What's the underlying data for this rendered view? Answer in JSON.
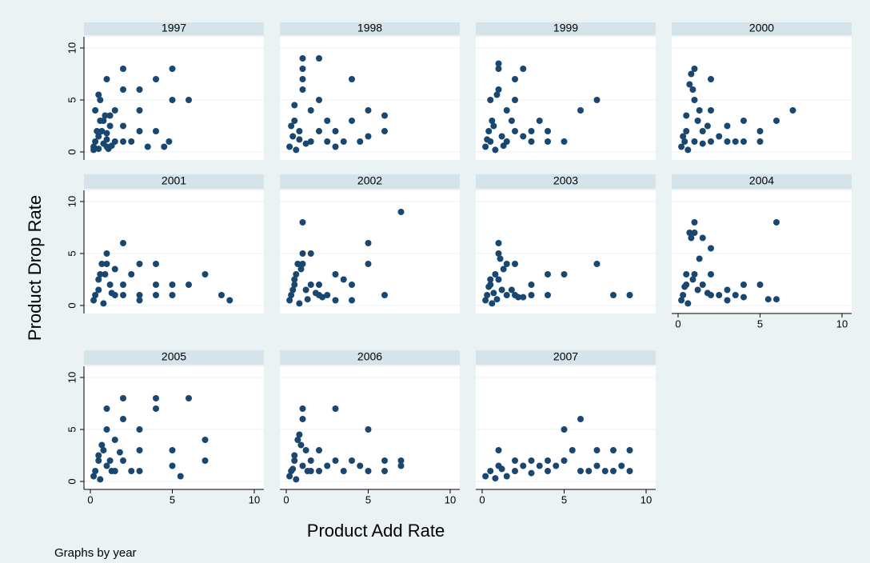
{
  "chart_data": {
    "type": "scatter",
    "y_label": "Product Drop Rate",
    "x_label": "Product Add Rate",
    "note": "Graphs by year",
    "color": "#1a476f",
    "xlim": [
      0,
      10
    ],
    "ylim": [
      0,
      10
    ],
    "xticks": [
      0,
      5,
      10
    ],
    "yticks": [
      0,
      5,
      10
    ],
    "grid": true,
    "panels": [
      {
        "title": "1997",
        "x": [
          0.2,
          0.3,
          0.5,
          0.5,
          0.7,
          0.8,
          1,
          1,
          1.2,
          1.5,
          0.4,
          0.6,
          0.9,
          1.1,
          1.3,
          0.2,
          0.6,
          1,
          1.5,
          2,
          2,
          2,
          2.5,
          3,
          3,
          3,
          3.5,
          4,
          4,
          4.5,
          4.8,
          5,
          5,
          6,
          0.5,
          1,
          1.2,
          2,
          0.8,
          0.3
        ],
        "y": [
          0.5,
          1,
          0.3,
          1.5,
          2,
          0.8,
          0.5,
          1.2,
          2.5,
          1,
          2,
          3,
          3.5,
          0.3,
          0.6,
          0.2,
          5,
          7,
          4,
          8,
          6,
          1,
          1,
          4,
          6,
          2,
          0.5,
          2,
          7,
          0.5,
          1,
          8,
          5,
          5,
          5.5,
          1.8,
          3.5,
          2.5,
          3,
          4
        ]
      },
      {
        "title": "1998",
        "x": [
          0.2,
          0.4,
          0.5,
          0.6,
          0.8,
          1,
          1,
          1,
          1.2,
          1.5,
          1.5,
          2,
          2,
          2,
          2.5,
          2.5,
          3,
          3,
          3.5,
          4,
          4,
          4.5,
          5,
          5,
          6,
          6,
          0.5,
          1,
          0.3,
          0.8
        ],
        "y": [
          0.5,
          1.5,
          3,
          0.2,
          2,
          9,
          6,
          8,
          0.8,
          4,
          1,
          9,
          5,
          2,
          1,
          3,
          2,
          0.5,
          1,
          7,
          3,
          1,
          4,
          1.5,
          3.5,
          2,
          4.5,
          7,
          2.5,
          1.2
        ]
      },
      {
        "title": "1999",
        "x": [
          0.2,
          0.4,
          0.5,
          0.6,
          0.8,
          1,
          1,
          1.2,
          1.5,
          1.5,
          2,
          2,
          2,
          2.5,
          2.5,
          3,
          3,
          3.5,
          4,
          4,
          5,
          6,
          7,
          0.5,
          1,
          0.3,
          1.8,
          0.7,
          1.3,
          0.9
        ],
        "y": [
          0.5,
          2,
          1,
          3,
          0.2,
          8,
          6,
          1.5,
          4,
          1,
          7,
          5,
          2,
          1.5,
          8,
          2,
          1,
          3,
          2,
          1,
          1,
          4,
          5,
          5,
          8.5,
          1.2,
          3,
          2.5,
          0.6,
          5.5
        ]
      },
      {
        "title": "2000",
        "x": [
          0.2,
          0.3,
          0.5,
          0.6,
          0.8,
          1,
          1,
          1,
          1.2,
          1.5,
          1.5,
          2,
          2,
          2,
          2.5,
          3,
          3,
          3.5,
          4,
          4,
          5,
          5,
          6,
          7,
          0.5,
          0.7,
          1.3,
          0.4,
          0.9,
          1.8
        ],
        "y": [
          0.5,
          1.5,
          2,
          0.2,
          7.5,
          8,
          5,
          1,
          3,
          2,
          0.8,
          7,
          1,
          4,
          1.5,
          1,
          2.5,
          1,
          3,
          1,
          2,
          1,
          3,
          4,
          3.5,
          6.5,
          4,
          1,
          6,
          2.5
        ]
      },
      {
        "title": "2001",
        "x": [
          0.2,
          0.3,
          0.5,
          0.6,
          0.8,
          1,
          1,
          1.2,
          1.5,
          1.5,
          2,
          2,
          2,
          2.5,
          3,
          3,
          3,
          4,
          4,
          4,
          5,
          5,
          6,
          7,
          8,
          8.5,
          0.5,
          0.7,
          1.3,
          0.9
        ],
        "y": [
          0.5,
          1,
          1.5,
          3,
          0.2,
          4,
          5,
          2,
          1,
          3.5,
          6,
          2,
          1,
          3,
          4,
          1,
          0.5,
          4,
          2,
          1,
          2,
          1,
          2,
          3,
          1,
          0.5,
          2.5,
          4,
          1.2,
          3
        ]
      },
      {
        "title": "2002",
        "x": [
          0.2,
          0.3,
          0.5,
          0.6,
          0.8,
          1,
          1,
          1,
          1.2,
          1.5,
          1.5,
          2,
          2,
          2.5,
          3,
          3,
          3.5,
          4,
          4,
          5,
          5,
          6,
          7,
          0.5,
          0.7,
          1.3,
          0.9,
          1.8,
          2.2,
          0.4
        ],
        "y": [
          0.5,
          1,
          2,
          3,
          0.2,
          8,
          5,
          4,
          1.5,
          5,
          2,
          2,
          1,
          1,
          3,
          0.5,
          2.5,
          2,
          0.5,
          6,
          4,
          1,
          9,
          2.5,
          4,
          0.6,
          3.5,
          1.2,
          0.8,
          1.5
        ]
      },
      {
        "title": "2003",
        "x": [
          0.2,
          0.3,
          0.5,
          0.6,
          0.8,
          1,
          1,
          1,
          1.2,
          1.5,
          1.5,
          2,
          2,
          2.5,
          3,
          3,
          4,
          4,
          5,
          7,
          8,
          9,
          0.5,
          0.7,
          1.3,
          0.9,
          1.8,
          0.4,
          2.2,
          1.1
        ],
        "y": [
          0.5,
          1,
          2,
          0.2,
          3,
          6,
          5,
          2.5,
          1.5,
          4,
          1,
          4,
          1,
          0.8,
          2,
          1,
          3,
          1,
          3,
          4,
          1,
          1,
          2.5,
          1.2,
          3.5,
          0.6,
          1.5,
          1.8,
          0.8,
          4.5
        ]
      },
      {
        "title": "2004",
        "x": [
          0.2,
          0.3,
          0.5,
          0.6,
          0.8,
          1,
          1,
          1,
          1.2,
          1.5,
          1.5,
          2,
          2,
          2,
          2.5,
          3,
          3,
          3.5,
          4,
          4,
          5,
          5.5,
          6,
          6,
          0.5,
          0.7,
          1.3,
          0.9,
          1.8,
          0.4
        ],
        "y": [
          0.5,
          1,
          2,
          0.2,
          6.5,
          8,
          7,
          3,
          1.5,
          6.5,
          2,
          5.5,
          3,
          1,
          1,
          1.5,
          0.5,
          1,
          2,
          0.8,
          2,
          0.6,
          8,
          0.6,
          3,
          7,
          4.5,
          2.5,
          1.2,
          1.8
        ]
      },
      {
        "title": "2005",
        "x": [
          0.2,
          0.3,
          0.5,
          0.6,
          0.8,
          1,
          1,
          1,
          1.2,
          1.5,
          1.5,
          2,
          2,
          2,
          2.5,
          3,
          3,
          3,
          4,
          4,
          5,
          5,
          5.5,
          6,
          7,
          7,
          0.5,
          0.7,
          1.3,
          1.8
        ],
        "y": [
          0.5,
          1,
          2,
          0.2,
          3,
          7,
          5,
          1.5,
          2,
          4,
          1,
          8,
          6,
          2,
          1,
          5,
          3,
          1,
          8,
          7,
          3,
          1.5,
          0.5,
          8,
          4,
          2,
          2.5,
          3.5,
          1,
          2.8
        ]
      },
      {
        "title": "2006",
        "x": [
          0.2,
          0.3,
          0.5,
          0.6,
          0.8,
          1,
          1,
          1,
          1.2,
          1.5,
          1.5,
          2,
          2,
          2.5,
          3,
          3,
          3.5,
          4,
          4.5,
          5,
          5,
          6,
          6,
          7,
          7,
          0.5,
          0.7,
          1.3,
          0.9,
          0.4
        ],
        "y": [
          0.5,
          1,
          2,
          0.2,
          4.5,
          7,
          6,
          1.5,
          3,
          2,
          1,
          3,
          1,
          1.5,
          7,
          2,
          1,
          2,
          1.5,
          5,
          1,
          2,
          1,
          2,
          1.5,
          2.5,
          4,
          1,
          3.5,
          1.2
        ]
      },
      {
        "title": "2007",
        "x": [
          0.2,
          0.5,
          0.8,
          1,
          1,
          1.5,
          2,
          2,
          2.5,
          3,
          3,
          3.5,
          4,
          4,
          4.5,
          5,
          5,
          5.5,
          6,
          6,
          6.5,
          7,
          7,
          7.5,
          8,
          8,
          8.5,
          9,
          9,
          1.2
        ],
        "y": [
          0.5,
          1,
          0.3,
          3,
          1.5,
          0.5,
          2,
          1,
          1.5,
          2,
          0.8,
          1.5,
          2,
          1,
          1.5,
          5,
          2,
          3,
          6,
          1,
          1,
          3,
          1.5,
          1,
          3,
          1,
          1.5,
          3,
          1,
          1.2
        ]
      }
    ]
  }
}
